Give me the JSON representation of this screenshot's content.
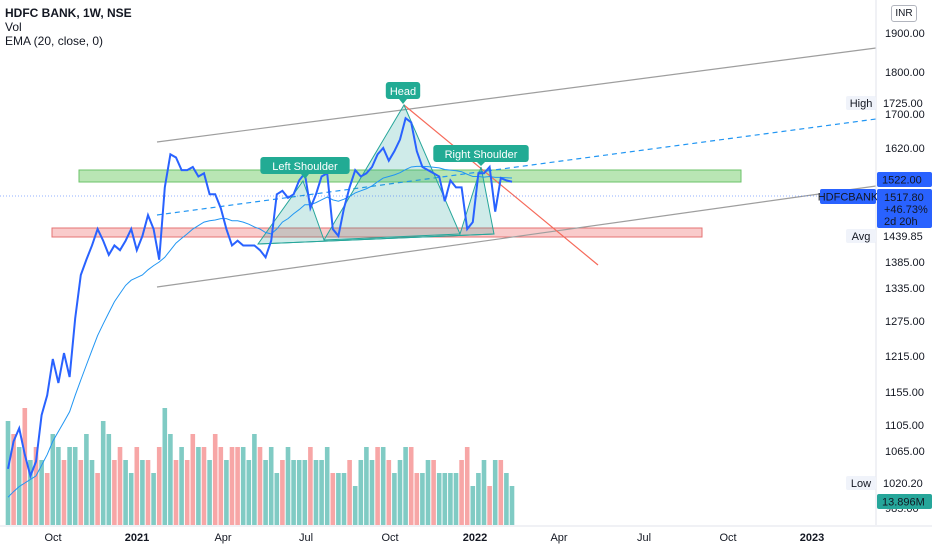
{
  "legend": {
    "symbol": "HDFC BANK, 1W, NSE",
    "vol": "Vol",
    "ema": "EMA (20, close, 0)"
  },
  "currency": "INR",
  "price_badges": {
    "symbol": "HDFCBANK",
    "price": "1517.80",
    "change": "+46.73%",
    "countdown": "2d 20h",
    "high_label": "High",
    "high_value": "1725.00",
    "avg_label": "Avg",
    "avg_value": "1439.85",
    "low_label": "Low",
    "low_value": "1020.20",
    "level_value": "1522.00",
    "volume_value": "13.896M"
  },
  "colors": {
    "price_line": "#2962ff",
    "ema_line": "#2196f3",
    "vol_up": "#80cbc4",
    "vol_down": "#f7a6a6",
    "pattern_fill": "#26a69a",
    "label_bg": "#22ab94",
    "resistance_zone": "#b9e6b4",
    "support_zone": "#f9cbcb",
    "red_trend": "#f66a5a"
  },
  "chart_data": {
    "type": "line",
    "title": "HDFC BANK, 1W, NSE",
    "y_ticks": [
      1900,
      1800,
      1725,
      1700,
      1620,
      1522,
      1517.8,
      1439.85,
      1385,
      1335,
      1275,
      1215,
      1155,
      1105,
      1065,
      1020.2,
      985
    ],
    "y_tick_labels": [
      "1900.00",
      "1800.00",
      "1725.00",
      "1700.00",
      "1620.00",
      "1522.00",
      "1517.80",
      "1439.85",
      "1385.00",
      "1335.00",
      "1275.00",
      "1215.00",
      "1155.00",
      "1105.00",
      "1065.00",
      "1020.20",
      "985.00"
    ],
    "x_tick_labels": [
      "Oct",
      "2021",
      "Apr",
      "Jul",
      "Oct",
      "2022",
      "Apr",
      "Jul",
      "Oct",
      "2023"
    ],
    "price_series": {
      "name": "HDFC BANK",
      "values": [
        1040,
        1080,
        1100,
        1060,
        1030,
        1050,
        1120,
        1150,
        1210,
        1170,
        1220,
        1180,
        1280,
        1360,
        1390,
        1420,
        1450,
        1430,
        1400,
        1420,
        1410,
        1430,
        1450,
        1410,
        1440,
        1470,
        1450,
        1390,
        1510,
        1600,
        1590,
        1550,
        1550,
        1560,
        1530,
        1540,
        1500,
        1500,
        1480,
        1450,
        1420,
        1430,
        1420,
        1420,
        1420,
        1410,
        1395,
        1430,
        1500,
        1505,
        1495,
        1500,
        1520,
        1540,
        1480,
        1500,
        1530,
        1540,
        1450,
        1440,
        1480,
        1510,
        1550,
        1530,
        1540,
        1560,
        1600,
        1620,
        1580,
        1610,
        1640,
        1690,
        1680,
        1610,
        1560,
        1550,
        1540,
        1530,
        1490,
        1520,
        1510,
        1510,
        1450,
        1460,
        1540,
        1540,
        1560,
        1475,
        1525,
        1520,
        1518
      ],
      "ema": [
        1000,
        1008,
        1015,
        1020,
        1025,
        1030,
        1045,
        1060,
        1080,
        1095,
        1110,
        1125,
        1150,
        1175,
        1200,
        1225,
        1250,
        1270,
        1290,
        1310,
        1325,
        1340,
        1350,
        1355,
        1360,
        1370,
        1378,
        1385,
        1395,
        1410,
        1425,
        1435,
        1443,
        1450,
        1455,
        1460,
        1462,
        1463,
        1465,
        1465,
        1462,
        1462,
        1460,
        1457,
        1453,
        1450,
        1445,
        1443,
        1450,
        1460,
        1465,
        1472,
        1478,
        1485,
        1485,
        1488,
        1492,
        1496,
        1492,
        1490,
        1493,
        1497,
        1502,
        1505,
        1508,
        1512,
        1518,
        1525,
        1530,
        1535,
        1542,
        1552,
        1560,
        1562,
        1562,
        1561,
        1559,
        1557,
        1552,
        1550,
        1548,
        1545,
        1537,
        1530,
        1530,
        1528,
        1530,
        1527,
        1527,
        1526,
        1525
      ]
    },
    "volume_series": {
      "name": "Vol",
      "values": [
        0.8,
        0.7,
        0.6,
        0.9,
        0.5,
        0.6,
        0.5,
        0.4,
        0.7,
        0.6,
        0.5,
        0.6,
        0.6,
        0.5,
        0.7,
        0.5,
        0.4,
        0.8,
        0.7,
        0.5,
        0.6,
        0.5,
        0.4,
        0.6,
        0.5,
        0.5,
        0.4,
        0.6,
        0.9,
        0.7,
        0.5,
        0.6,
        0.5,
        0.7,
        0.6,
        0.6,
        0.5,
        0.7,
        0.6,
        0.5,
        0.6,
        0.6,
        0.6,
        0.5,
        0.7,
        0.6,
        0.5,
        0.6,
        0.4,
        0.5,
        0.6,
        0.5,
        0.5,
        0.5,
        0.6,
        0.5,
        0.5,
        0.6,
        0.4,
        0.4,
        0.4,
        0.5,
        0.3,
        0.5,
        0.6,
        0.5,
        0.6,
        0.6,
        0.5,
        0.4,
        0.5,
        0.6,
        0.6,
        0.4,
        0.4,
        0.5,
        0.5,
        0.4,
        0.4,
        0.4,
        0.4,
        0.5,
        0.6,
        0.3,
        0.4,
        0.5,
        0.3,
        0.5,
        0.5,
        0.4,
        0.3
      ],
      "up": [
        true,
        false,
        true,
        false,
        true,
        false,
        true,
        false,
        true,
        true,
        false,
        true,
        true,
        false,
        true,
        true,
        false,
        true,
        true,
        false,
        false,
        true,
        true,
        false,
        true,
        false,
        true,
        false,
        true,
        true,
        false,
        true,
        false,
        false,
        true,
        false,
        true,
        false,
        false,
        true,
        false,
        false,
        true,
        true,
        true,
        false,
        true,
        true,
        true,
        false,
        true,
        true,
        true,
        true,
        false,
        true,
        true,
        true,
        false,
        true,
        true,
        false,
        true,
        true,
        true,
        true,
        false,
        true,
        false,
        true,
        true,
        true,
        false,
        false,
        true,
        true,
        false,
        true,
        true,
        true,
        true,
        false,
        false,
        true,
        true,
        true,
        false,
        true,
        false,
        true,
        true
      ]
    },
    "annotations": {
      "head": "Head",
      "left_shoulder": "Left Shoulder",
      "right_shoulder": "Right Shoulder"
    },
    "levels": {
      "resistance_zone": [
        1512,
        1532
      ],
      "support_zone": [
        1433,
        1448
      ]
    },
    "ylim": [
      970,
      1930
    ],
    "grid": false
  }
}
